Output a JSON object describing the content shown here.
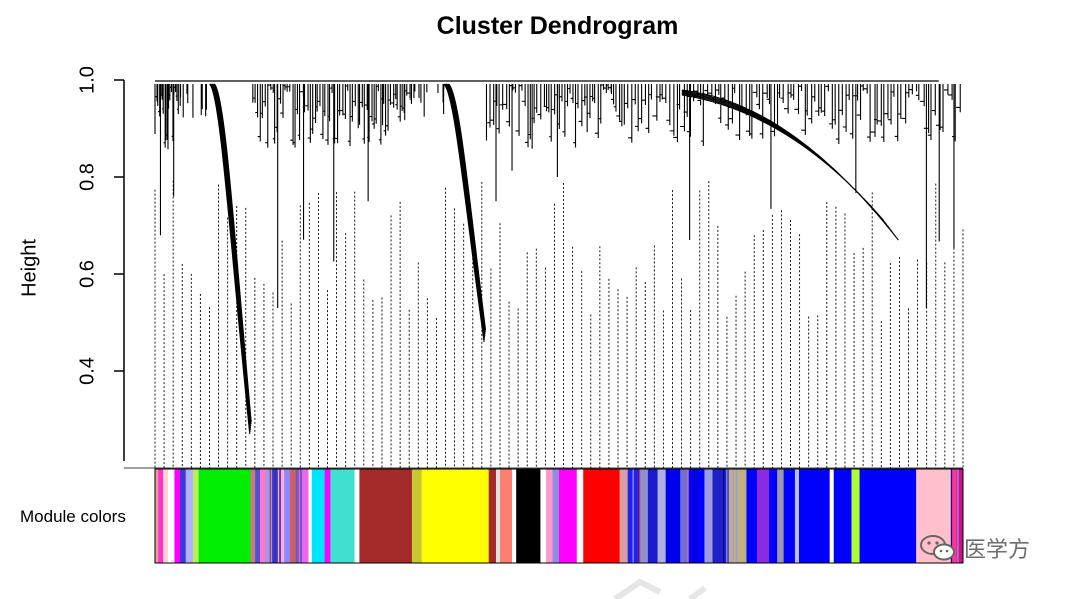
{
  "chart_data": {
    "type": "dendrogram",
    "title": "Cluster Dendrogram",
    "ylabel": "Height",
    "xlabel": "",
    "ylim": [
      0.2,
      1.0
    ],
    "y_ticks": [
      {
        "value": 0.4,
        "label": "0.4"
      },
      {
        "value": 0.6,
        "label": "0.6"
      },
      {
        "value": 0.8,
        "label": "0.8"
      },
      {
        "value": 1.0,
        "label": "1.0"
      }
    ],
    "color_bar_label": "Module colors",
    "clusters": [
      {
        "module": "lightgrey-mix",
        "start": 0.0,
        "end": 0.03,
        "min_height": 0.68,
        "branch_count": 6
      },
      {
        "module": "green",
        "start": 0.03,
        "end": 0.12,
        "min_height": 0.27,
        "branch_count": 1
      },
      {
        "module": "mixed-1",
        "start": 0.12,
        "end": 0.25,
        "min_height": 0.53,
        "branch_count": 14
      },
      {
        "module": "brown",
        "start": 0.25,
        "end": 0.32,
        "min_height": 0.75,
        "branch_count": 8
      },
      {
        "module": "yellow",
        "start": 0.32,
        "end": 0.41,
        "min_height": 0.46,
        "branch_count": 1
      },
      {
        "module": "black",
        "start": 0.41,
        "end": 0.48,
        "min_height": 0.75,
        "branch_count": 6
      },
      {
        "module": "red",
        "start": 0.48,
        "end": 0.58,
        "min_height": 0.8,
        "branch_count": 10
      },
      {
        "module": "blue",
        "start": 0.58,
        "end": 0.94,
        "min_height": 0.67,
        "branch_count": 28
      },
      {
        "module": "pink",
        "start": 0.94,
        "end": 1.0,
        "min_height": 0.53,
        "branch_count": 4
      }
    ],
    "module_bands": [
      {
        "start": 0.0,
        "end": 0.004,
        "color": "#e6a0a0"
      },
      {
        "start": 0.004,
        "end": 0.01,
        "color": "#ff33cc"
      },
      {
        "start": 0.01,
        "end": 0.016,
        "color": "#ffd0d0"
      },
      {
        "start": 0.016,
        "end": 0.024,
        "color": "#ffffff"
      },
      {
        "start": 0.024,
        "end": 0.031,
        "color": "#ff00ff"
      },
      {
        "start": 0.031,
        "end": 0.038,
        "color": "#3a3ad6"
      },
      {
        "start": 0.038,
        "end": 0.047,
        "color": "#b0b0ff"
      },
      {
        "start": 0.047,
        "end": 0.054,
        "color": "#b9f05a"
      },
      {
        "start": 0.054,
        "end": 0.118,
        "color": "#00ee00"
      },
      {
        "start": 0.118,
        "end": 0.124,
        "color": "#c08080"
      },
      {
        "start": 0.124,
        "end": 0.13,
        "color": "#5050d0"
      },
      {
        "start": 0.13,
        "end": 0.137,
        "color": "#ff77cc"
      },
      {
        "start": 0.137,
        "end": 0.145,
        "color": "#9999ee"
      },
      {
        "start": 0.145,
        "end": 0.152,
        "color": "#3333cc"
      },
      {
        "start": 0.152,
        "end": 0.16,
        "color": "#ffaadd"
      },
      {
        "start": 0.16,
        "end": 0.167,
        "color": "#8888ff"
      },
      {
        "start": 0.167,
        "end": 0.174,
        "color": "#d06060"
      },
      {
        "start": 0.174,
        "end": 0.182,
        "color": "#6a5acd"
      },
      {
        "start": 0.182,
        "end": 0.19,
        "color": "#ee66ee"
      },
      {
        "start": 0.19,
        "end": 0.194,
        "color": "#ffffff"
      },
      {
        "start": 0.194,
        "end": 0.21,
        "color": "#00e5ff"
      },
      {
        "start": 0.21,
        "end": 0.217,
        "color": "#ff00ff"
      },
      {
        "start": 0.217,
        "end": 0.247,
        "color": "#40e0d0"
      },
      {
        "start": 0.247,
        "end": 0.253,
        "color": "#ffffff"
      },
      {
        "start": 0.253,
        "end": 0.318,
        "color": "#a52a2a"
      },
      {
        "start": 0.318,
        "end": 0.33,
        "color": "#c8c830"
      },
      {
        "start": 0.33,
        "end": 0.413,
        "color": "#ffff00"
      },
      {
        "start": 0.413,
        "end": 0.422,
        "color": "#a52a2a"
      },
      {
        "start": 0.422,
        "end": 0.427,
        "color": "#e0e0e0"
      },
      {
        "start": 0.427,
        "end": 0.442,
        "color": "#fa8072"
      },
      {
        "start": 0.442,
        "end": 0.447,
        "color": "#ffffff"
      },
      {
        "start": 0.447,
        "end": 0.477,
        "color": "#000000"
      },
      {
        "start": 0.477,
        "end": 0.484,
        "color": "#ffffff"
      },
      {
        "start": 0.484,
        "end": 0.492,
        "color": "#ff99cc"
      },
      {
        "start": 0.492,
        "end": 0.5,
        "color": "#8e8ee0"
      },
      {
        "start": 0.5,
        "end": 0.522,
        "color": "#ff00ff"
      },
      {
        "start": 0.522,
        "end": 0.53,
        "color": "#ffffff"
      },
      {
        "start": 0.53,
        "end": 0.575,
        "color": "#ff0000"
      },
      {
        "start": 0.575,
        "end": 0.585,
        "color": "#d8a0a0"
      },
      {
        "start": 0.585,
        "end": 0.6,
        "color": "#2222ee"
      },
      {
        "start": 0.6,
        "end": 0.61,
        "color": "#9090cc"
      },
      {
        "start": 0.61,
        "end": 0.622,
        "color": "#1b1bd0"
      },
      {
        "start": 0.622,
        "end": 0.632,
        "color": "#b0b0e0"
      },
      {
        "start": 0.632,
        "end": 0.65,
        "color": "#0000ee"
      },
      {
        "start": 0.65,
        "end": 0.66,
        "color": "#7070d0"
      },
      {
        "start": 0.66,
        "end": 0.68,
        "color": "#0000ff"
      },
      {
        "start": 0.68,
        "end": 0.69,
        "color": "#9c9ce0"
      },
      {
        "start": 0.69,
        "end": 0.71,
        "color": "#2020c8"
      },
      {
        "start": 0.71,
        "end": 0.732,
        "color": "#c0b080"
      },
      {
        "start": 0.732,
        "end": 0.745,
        "color": "#0000ff"
      },
      {
        "start": 0.745,
        "end": 0.76,
        "color": "#8a2be2"
      },
      {
        "start": 0.76,
        "end": 0.77,
        "color": "#0000ff"
      },
      {
        "start": 0.77,
        "end": 0.778,
        "color": "#9999aa"
      },
      {
        "start": 0.778,
        "end": 0.792,
        "color": "#0000ff"
      },
      {
        "start": 0.792,
        "end": 0.797,
        "color": "#c0c0ff"
      },
      {
        "start": 0.797,
        "end": 0.835,
        "color": "#0000ff"
      },
      {
        "start": 0.835,
        "end": 0.84,
        "color": "#ffffff"
      },
      {
        "start": 0.84,
        "end": 0.862,
        "color": "#0000ff"
      },
      {
        "start": 0.862,
        "end": 0.872,
        "color": "#adff2f"
      },
      {
        "start": 0.872,
        "end": 0.942,
        "color": "#0000ff"
      },
      {
        "start": 0.942,
        "end": 0.985,
        "color": "#ffc0cb"
      },
      {
        "start": 0.985,
        "end": 0.992,
        "color": "#ff3399"
      },
      {
        "start": 0.992,
        "end": 1.0,
        "color": "#c71585"
      }
    ]
  },
  "watermark": {
    "text": "医学方",
    "logo_icon": "wechat-logo"
  }
}
